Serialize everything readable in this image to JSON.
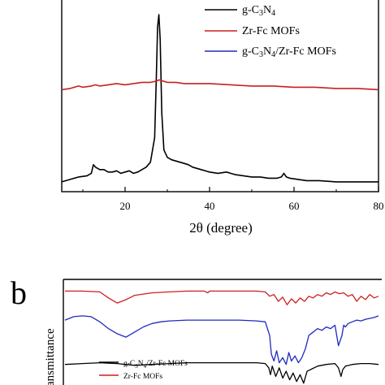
{
  "chart_data": [
    {
      "panel": "a",
      "type": "line",
      "xlabel": "2θ (degree)",
      "ylabel": "",
      "xlim": [
        5,
        80
      ],
      "xticks": [
        20,
        40,
        60,
        80
      ],
      "tick_labels": [
        "20",
        "40",
        "60",
        "80"
      ],
      "grid": false,
      "legend": {
        "placement": "top-right",
        "entries": [
          {
            "base": "g-C",
            "sub1": "3",
            "mid": "N",
            "sub2": "4",
            "tail": "",
            "color": "#000000"
          },
          {
            "text": "Zr-Fc MOFs",
            "color": "#cc1f1f"
          },
          {
            "base": "g-C",
            "sub1": "3",
            "mid": "N",
            "sub2": "4",
            "tail": "/Zr-Fc MOFs",
            "color": "#1f2bbf"
          }
        ]
      },
      "series": [
        {
          "name": "g-C3N4",
          "color": "#000000",
          "x": [
            5,
            7,
            9,
            11,
            12,
            12.5,
            13,
            14,
            15,
            16,
            17,
            18,
            19,
            20,
            21,
            22,
            23,
            24,
            25,
            26,
            27,
            27.4,
            27.7,
            28.0,
            28.3,
            28.7,
            29.2,
            30,
            31,
            32,
            33,
            34,
            35,
            36,
            37,
            38,
            40,
            42,
            44,
            45,
            46,
            48,
            50,
            52,
            54,
            56,
            57,
            57.6,
            58.2,
            59,
            61,
            63,
            66,
            70,
            75,
            80
          ],
          "y": [
            4,
            6,
            8,
            9,
            11,
            18,
            16,
            14,
            14,
            12,
            12,
            13,
            11,
            12,
            13,
            11,
            12,
            14,
            16,
            20,
            40,
            90,
            130,
            140,
            120,
            60,
            30,
            24,
            22,
            21,
            20,
            19,
            18,
            16,
            15,
            14,
            12,
            11,
            12,
            11,
            10,
            9,
            8,
            8,
            7,
            7,
            8,
            11,
            8,
            7,
            6,
            5,
            5,
            4,
            4,
            4
          ]
        },
        {
          "name": "Zr-Fc MOFs",
          "color": "#cc1f1f",
          "x": [
            5,
            7,
            8,
            9,
            10,
            12,
            13,
            14,
            16,
            18,
            20,
            22,
            24,
            26,
            27.5,
            28,
            29,
            30,
            32,
            34,
            36,
            40,
            45,
            50,
            55,
            60,
            65,
            70,
            75,
            80
          ],
          "y": [
            79,
            80,
            81,
            82,
            81,
            82,
            83,
            82,
            83,
            84,
            83,
            84,
            85,
            85,
            86,
            87,
            86,
            85,
            85,
            84,
            84,
            84,
            83,
            82,
            82,
            81,
            81,
            80,
            80,
            79
          ]
        }
      ],
      "ylim": [
        0,
        148
      ]
    },
    {
      "panel": "b",
      "type": "line",
      "ylabel": "Transmittance",
      "ylabel_visible": "ansmittance",
      "xlim": [
        4000,
        400
      ],
      "grid": false,
      "legend": {
        "placement": "bottom-left",
        "entries": [
          {
            "base": "g-C",
            "sub1": "3",
            "mid": "N",
            "sub2": "4",
            "tail": "/Zr-Fc MOFs",
            "color": "#000000"
          },
          {
            "text": "Zr-Fc MOFs",
            "color": "#cc1f1f"
          }
        ]
      },
      "series": [
        {
          "name": "Zr-Fc MOFs",
          "color": "#cc1f1f",
          "x": [
            4000,
            3800,
            3600,
            3500,
            3400,
            3300,
            3200,
            3000,
            2800,
            2600,
            2400,
            2360,
            2340,
            2200,
            2000,
            1800,
            1700,
            1650,
            1600,
            1550,
            1500,
            1450,
            1400,
            1350,
            1300,
            1250,
            1200,
            1150,
            1100,
            1050,
            1000,
            950,
            900,
            850,
            800,
            750,
            700,
            650,
            600,
            550,
            500,
            450,
            400
          ],
          "y": [
            92,
            92,
            91,
            84,
            78,
            82,
            87,
            90,
            91,
            92,
            92,
            90,
            92,
            92,
            92,
            92,
            91,
            86,
            88,
            80,
            85,
            76,
            83,
            78,
            84,
            80,
            86,
            84,
            88,
            86,
            90,
            88,
            91,
            89,
            90,
            86,
            88,
            80,
            86,
            82,
            88,
            84,
            86
          ]
        },
        {
          "name": "g-C3N4/Zr-Fc MOFs",
          "color": "#1f2bbf",
          "x": [
            4000,
            3900,
            3800,
            3700,
            3600,
            3500,
            3400,
            3300,
            3200,
            3100,
            3000,
            2900,
            2800,
            2600,
            2400,
            2200,
            2000,
            1800,
            1700,
            1650,
            1630,
            1600,
            1570,
            1540,
            1500,
            1460,
            1430,
            1400,
            1360,
            1320,
            1280,
            1240,
            1200,
            1150,
            1100,
            1050,
            1000,
            950,
            900,
            860,
            820,
            800,
            780,
            750,
            700,
            650,
            600,
            550,
            500,
            450,
            400
          ],
          "y": [
            58,
            62,
            63,
            62,
            56,
            48,
            42,
            38,
            44,
            50,
            54,
            56,
            57,
            58,
            58,
            58,
            58,
            57,
            56,
            40,
            18,
            10,
            22,
            8,
            14,
            6,
            20,
            10,
            16,
            8,
            14,
            24,
            40,
            44,
            48,
            46,
            50,
            48,
            52,
            28,
            40,
            52,
            50,
            54,
            56,
            58,
            57,
            59,
            60,
            61,
            63
          ]
        },
        {
          "name": "g-C3N4",
          "color": "#000000",
          "x": [
            4000,
            3800,
            3600,
            3400,
            3200,
            3000,
            2800,
            2600,
            2400,
            2200,
            2000,
            1800,
            1700,
            1660,
            1640,
            1620,
            1580,
            1540,
            1500,
            1460,
            1420,
            1380,
            1340,
            1300,
            1260,
            1220,
            1180,
            1100,
            1000,
            900,
            860,
            830,
            810,
            780,
            700,
            600,
            500,
            400
          ],
          "y": [
            6,
            7,
            8,
            7,
            5,
            6,
            7,
            8,
            8,
            8,
            8,
            8,
            7,
            2,
            -6,
            4,
            -8,
            2,
            -10,
            -2,
            -12,
            -4,
            -14,
            -6,
            -16,
            -2,
            0,
            4,
            6,
            7,
            2,
            -8,
            0,
            4,
            6,
            7,
            7,
            6
          ]
        }
      ],
      "ylim": [
        -20,
        100
      ]
    }
  ],
  "panel_b_letter": "b"
}
